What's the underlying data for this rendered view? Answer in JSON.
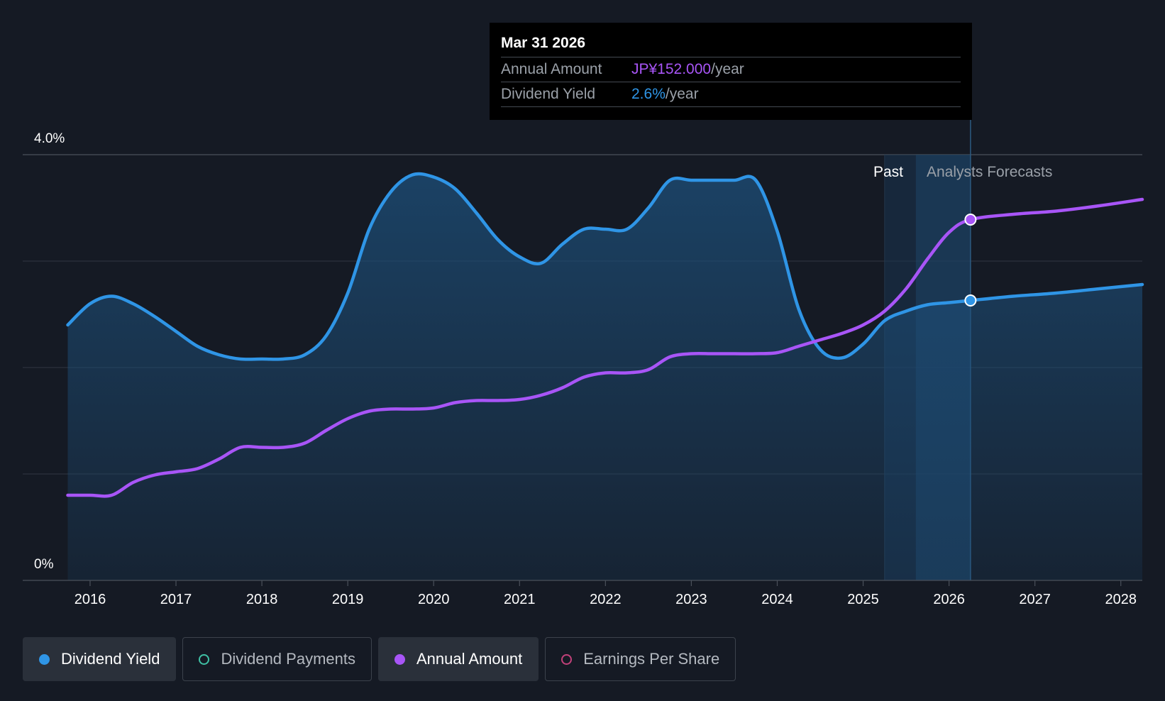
{
  "chart_data": {
    "type": "line",
    "ylim": [
      0,
      4.0
    ],
    "xlim": [
      2015.74,
      2028.25
    ],
    "y_tick_labels": [
      "4.0%",
      "0%"
    ],
    "x_tick_labels": [
      "2016",
      "2017",
      "2018",
      "2019",
      "2020",
      "2021",
      "2022",
      "2023",
      "2024",
      "2025",
      "2026",
      "2027",
      "2028"
    ],
    "x_ticks": [
      2016,
      2017,
      2018,
      2019,
      2020,
      2021,
      2022,
      2023,
      2024,
      2025,
      2026,
      2027,
      2028
    ],
    "gridlines": [
      1.0,
      2.0,
      3.0,
      4.0
    ],
    "past_label": "Past",
    "forecast_label": "Analysts Forecasts",
    "forecast_start": 2025.25,
    "highlight_x": 2026.25,
    "series": [
      {
        "name": "Dividend Yield",
        "color": "#2f95e6",
        "points": [
          [
            2015.74,
            2.4
          ],
          [
            2016.0,
            2.6
          ],
          [
            2016.25,
            2.67
          ],
          [
            2016.5,
            2.6
          ],
          [
            2016.75,
            2.48
          ],
          [
            2017.0,
            2.34
          ],
          [
            2017.25,
            2.2
          ],
          [
            2017.5,
            2.12
          ],
          [
            2017.75,
            2.08
          ],
          [
            2018.0,
            2.08
          ],
          [
            2018.25,
            2.08
          ],
          [
            2018.5,
            2.12
          ],
          [
            2018.75,
            2.3
          ],
          [
            2019.0,
            2.7
          ],
          [
            2019.25,
            3.3
          ],
          [
            2019.5,
            3.65
          ],
          [
            2019.75,
            3.81
          ],
          [
            2020.0,
            3.79
          ],
          [
            2020.25,
            3.68
          ],
          [
            2020.5,
            3.45
          ],
          [
            2020.75,
            3.2
          ],
          [
            2021.0,
            3.04
          ],
          [
            2021.25,
            2.98
          ],
          [
            2021.5,
            3.16
          ],
          [
            2021.75,
            3.3
          ],
          [
            2022.0,
            3.3
          ],
          [
            2022.25,
            3.3
          ],
          [
            2022.5,
            3.5
          ],
          [
            2022.75,
            3.76
          ],
          [
            2023.0,
            3.76
          ],
          [
            2023.25,
            3.76
          ],
          [
            2023.5,
            3.76
          ],
          [
            2023.75,
            3.76
          ],
          [
            2024.0,
            3.28
          ],
          [
            2024.25,
            2.55
          ],
          [
            2024.5,
            2.17
          ],
          [
            2024.75,
            2.09
          ],
          [
            2025.0,
            2.22
          ],
          [
            2025.25,
            2.44
          ],
          [
            2025.5,
            2.53
          ],
          [
            2025.75,
            2.59
          ],
          [
            2026.0,
            2.61
          ],
          [
            2026.25,
            2.63
          ],
          [
            2026.75,
            2.67
          ],
          [
            2027.25,
            2.7
          ],
          [
            2027.75,
            2.74
          ],
          [
            2028.25,
            2.78
          ]
        ]
      },
      {
        "name": "Annual Amount",
        "color": "#a855f7",
        "points": [
          [
            2015.74,
            0.8
          ],
          [
            2016.0,
            0.8
          ],
          [
            2016.25,
            0.8
          ],
          [
            2016.5,
            0.92
          ],
          [
            2016.75,
            0.99
          ],
          [
            2017.0,
            1.02
          ],
          [
            2017.25,
            1.05
          ],
          [
            2017.5,
            1.14
          ],
          [
            2017.75,
            1.25
          ],
          [
            2018.0,
            1.25
          ],
          [
            2018.25,
            1.25
          ],
          [
            2018.5,
            1.29
          ],
          [
            2018.75,
            1.41
          ],
          [
            2019.0,
            1.52
          ],
          [
            2019.25,
            1.59
          ],
          [
            2019.5,
            1.61
          ],
          [
            2019.75,
            1.61
          ],
          [
            2020.0,
            1.62
          ],
          [
            2020.25,
            1.67
          ],
          [
            2020.5,
            1.69
          ],
          [
            2020.75,
            1.69
          ],
          [
            2021.0,
            1.7
          ],
          [
            2021.25,
            1.74
          ],
          [
            2021.5,
            1.81
          ],
          [
            2021.75,
            1.91
          ],
          [
            2022.0,
            1.95
          ],
          [
            2022.25,
            1.95
          ],
          [
            2022.5,
            1.98
          ],
          [
            2022.75,
            2.1
          ],
          [
            2023.0,
            2.13
          ],
          [
            2023.25,
            2.13
          ],
          [
            2023.5,
            2.13
          ],
          [
            2023.75,
            2.13
          ],
          [
            2024.0,
            2.14
          ],
          [
            2024.25,
            2.2
          ],
          [
            2024.5,
            2.26
          ],
          [
            2024.75,
            2.32
          ],
          [
            2025.0,
            2.4
          ],
          [
            2025.25,
            2.53
          ],
          [
            2025.5,
            2.74
          ],
          [
            2025.75,
            3.02
          ],
          [
            2026.0,
            3.27
          ],
          [
            2026.25,
            3.39
          ],
          [
            2026.75,
            3.44
          ],
          [
            2027.25,
            3.47
          ],
          [
            2027.75,
            3.52
          ],
          [
            2028.25,
            3.58
          ]
        ]
      }
    ],
    "markers": [
      {
        "series": "Annual Amount",
        "x": 2026.25,
        "y": 3.39
      },
      {
        "series": "Dividend Yield",
        "x": 2026.25,
        "y": 2.63
      }
    ]
  },
  "tooltip": {
    "date": "Mar 31 2026",
    "annual_label": "Annual Amount",
    "annual_value": "JP¥152.000",
    "annual_unit": "/year",
    "yield_label": "Dividend Yield",
    "yield_value": "2.6%",
    "yield_unit": "/year"
  },
  "legend": [
    {
      "label": "Dividend Yield",
      "color": "#2f95e6",
      "active": true
    },
    {
      "label": "Dividend Payments",
      "color": "#3fc1a5",
      "active": false
    },
    {
      "label": "Annual Amount",
      "color": "#a855f7",
      "active": true
    },
    {
      "label": "Earnings Per Share",
      "color": "#c2417a",
      "active": false
    }
  ]
}
